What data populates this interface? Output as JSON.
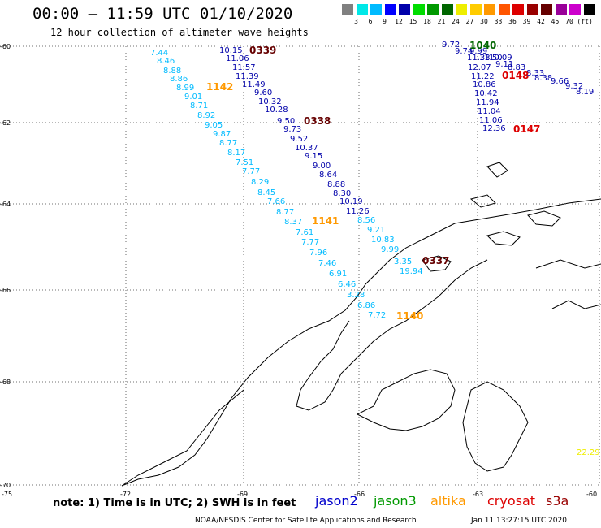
{
  "title": "00:00 – 11:59 UTC 01/10/2020",
  "subtitle": "12 hour collection of altimeter wave heights",
  "colorbar": {
    "colors": [
      "#808080",
      "#00e8e8",
      "#00bbff",
      "#0000ff",
      "#0000aa",
      "#00dd00",
      "#009900",
      "#006600",
      "#eeee00",
      "#ffcc00",
      "#ff9900",
      "#ff5500",
      "#dd0000",
      "#990000",
      "#660000",
      "#990099",
      "#cc00cc",
      "#000000"
    ],
    "labels": [
      "3",
      "6",
      "9",
      "12",
      "15",
      "18",
      "21",
      "24",
      "27",
      "30",
      "33",
      "36",
      "39",
      "42",
      "45",
      "70",
      "(ft)"
    ]
  },
  "axes": {
    "lat_ticks": [
      "-60",
      "-62",
      "-64",
      "-66",
      "-68",
      "-70"
    ],
    "lon_ticks": [
      "-75",
      "-72",
      "-69",
      "-66",
      "-63",
      "-60"
    ]
  },
  "passes": [
    {
      "label": "0339",
      "color": "#660000"
    },
    {
      "label": "1142",
      "color": "#ff9900"
    },
    {
      "label": "0338",
      "color": "#660000"
    },
    {
      "label": "1141",
      "color": "#ff9900"
    },
    {
      "label": "0337",
      "color": "#660000"
    },
    {
      "label": "1140",
      "color": "#ff9900"
    },
    {
      "label": "1040",
      "color": "#006600"
    },
    {
      "label": "0148",
      "color": "#dd0000"
    },
    {
      "label": "0147",
      "color": "#dd0000"
    }
  ],
  "tracks": [
    {
      "name": "altika-1142",
      "color": "#00bbff",
      "values": [
        "7.44",
        "8.46",
        "8.88",
        "8.86",
        "8.99",
        "9.01",
        "8.71",
        "8.92",
        "9.05"
      ]
    },
    {
      "name": "jason2-0339",
      "color": "#0000aa",
      "values": [
        "10.15",
        "11.06",
        "11.57",
        "11.39",
        "11.49",
        "9.60",
        "10.32",
        "10.28",
        "9.50",
        "9.73",
        "9.52",
        "10.37",
        "9.15",
        "9.00",
        "8.64",
        "8.88",
        "8.30",
        "10.19",
        "11.26"
      ]
    },
    {
      "name": "mix-1141",
      "color": "#00bbff",
      "values": [
        "9.87",
        "8.77",
        "8.17",
        "7.51",
        "7.77",
        "8.29",
        "8.45",
        "7.66",
        "8.77",
        "8.37",
        "7.61",
        "7.77",
        "7.96",
        "7.46",
        "6.91",
        "6.46"
      ]
    },
    {
      "name": "jason2-south",
      "color": "#00bbff",
      "values": [
        "8.56",
        "9.21",
        "10.83",
        "9.99"
      ]
    },
    {
      "name": "near-0337",
      "color": "#00bbff",
      "values": [
        "3.35",
        "19.94",
        "3.28",
        "6.86",
        "7.72"
      ]
    },
    {
      "name": "east-1040",
      "color": "#0000aa",
      "values": [
        "9.72",
        "9.74",
        "9.99",
        "11.33",
        "11.50",
        "10.09",
        "9.11",
        "8.83",
        "8.33",
        "8.38",
        "9.66",
        "9.32",
        "8.19",
        "12.07",
        "11.22",
        "10.86",
        "10.42",
        "11.94",
        "11.04",
        "11.06",
        "12.36"
      ]
    },
    {
      "name": "far-right",
      "color": "#eeee00",
      "values": [
        "22.29"
      ]
    }
  ],
  "note": "note: 1) Time is in UTC; 2) SWH is in feet",
  "legend": [
    {
      "name": "jason2",
      "color": "#0000cc"
    },
    {
      "name": "jason3",
      "color": "#009900"
    },
    {
      "name": "altika",
      "color": "#ff9900"
    },
    {
      "name": "cryosat",
      "color": "#dd0000"
    },
    {
      "name": "s3a",
      "color": "#990000"
    }
  ],
  "credit": "NOAA/NESDIS Center for Satellite Applications and Research",
  "timestamp": "Jan 11 13:27:15 UTC 2020"
}
